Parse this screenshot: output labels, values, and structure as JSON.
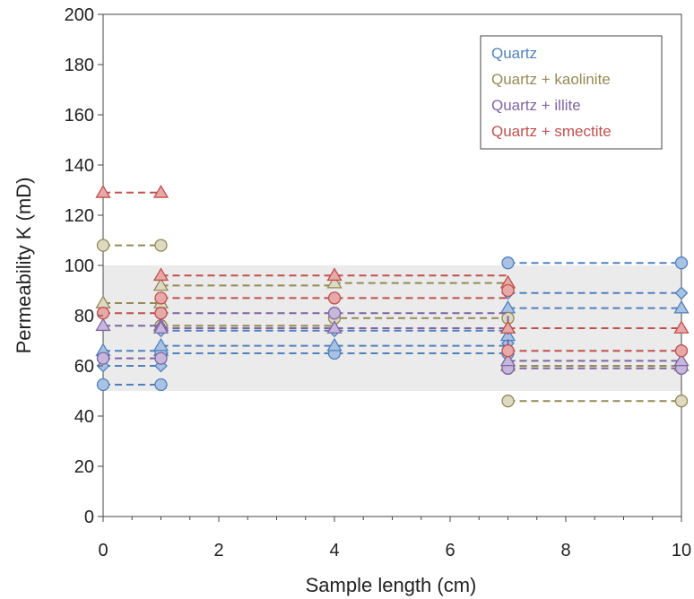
{
  "chart_data": {
    "type": "scatter",
    "title": "",
    "xlabel": "Sample length (cm)",
    "ylabel": "Permeability K (mD)",
    "xlim": [
      0,
      10
    ],
    "ylim": [
      0,
      200
    ],
    "x_ticks": [
      0,
      2,
      4,
      6,
      8,
      10
    ],
    "y_ticks": [
      0,
      20,
      40,
      60,
      80,
      100,
      120,
      140,
      160,
      180,
      200
    ],
    "shaded_band": [
      50,
      100
    ],
    "legend_position": "top-right",
    "grid": false,
    "series": [
      {
        "name": "Quartz",
        "color": "#4f81bd",
        "fill": "#a9c2e3",
        "lines": [
          {
            "marker": "circle",
            "points": [
              [
                0,
                52.5
              ],
              [
                1,
                52.5
              ]
            ]
          },
          {
            "marker": "diamond",
            "points": [
              [
                0,
                60
              ],
              [
                1,
                60
              ]
            ]
          },
          {
            "marker": "triangle",
            "points": [
              [
                0,
                66
              ],
              [
                1,
                66
              ]
            ]
          },
          {
            "marker": "circle",
            "points": [
              [
                1,
                65
              ],
              [
                4,
                65
              ],
              [
                7,
                65
              ]
            ]
          },
          {
            "marker": "diamond",
            "points": [
              [
                1,
                74
              ],
              [
                4,
                74
              ],
              [
                7,
                69
              ]
            ]
          },
          {
            "marker": "triangle",
            "points": [
              [
                1,
                68
              ],
              [
                4,
                68
              ],
              [
                7,
                72
              ]
            ]
          },
          {
            "marker": "circle",
            "points": [
              [
                7,
                101
              ],
              [
                10,
                101
              ]
            ]
          },
          {
            "marker": "diamond",
            "points": [
              [
                7,
                89
              ],
              [
                10,
                89
              ]
            ]
          },
          {
            "marker": "triangle",
            "points": [
              [
                7,
                83
              ],
              [
                10,
                83
              ]
            ]
          }
        ]
      },
      {
        "name": "Quartz + kaolinite",
        "color": "#948a54",
        "fill": "#ddd9c3",
        "lines": [
          {
            "marker": "circle",
            "points": [
              [
                0,
                108
              ],
              [
                1,
                108
              ]
            ]
          },
          {
            "marker": "triangle",
            "points": [
              [
                0,
                85
              ],
              [
                1,
                85
              ]
            ]
          },
          {
            "marker": "circle",
            "points": [
              [
                1,
                76
              ],
              [
                4,
                79
              ],
              [
                7,
                79
              ]
            ]
          },
          {
            "marker": "triangle",
            "points": [
              [
                1,
                92
              ],
              [
                4,
                93
              ],
              [
                7,
                93
              ]
            ]
          },
          {
            "marker": "circle",
            "points": [
              [
                7,
                46
              ],
              [
                10,
                46
              ]
            ]
          },
          {
            "marker": "triangle",
            "points": [
              [
                7,
                60
              ],
              [
                10,
                60
              ]
            ]
          }
        ]
      },
      {
        "name": "Quartz + illite",
        "color": "#8064a2",
        "fill": "#c5b8da",
        "lines": [
          {
            "marker": "circle",
            "points": [
              [
                0,
                63
              ],
              [
                1,
                63
              ]
            ]
          },
          {
            "marker": "triangle",
            "points": [
              [
                0,
                76
              ],
              [
                1,
                76
              ]
            ]
          },
          {
            "marker": "circle",
            "points": [
              [
                1,
                81
              ],
              [
                4,
                81
              ],
              [
                7,
                59
              ]
            ]
          },
          {
            "marker": "triangle",
            "points": [
              [
                1,
                75
              ],
              [
                4,
                75
              ],
              [
                7,
                75
              ]
            ]
          },
          {
            "marker": "circle",
            "points": [
              [
                7,
                59
              ],
              [
                10,
                59
              ]
            ]
          },
          {
            "marker": "triangle",
            "points": [
              [
                7,
                62
              ],
              [
                10,
                62
              ]
            ]
          }
        ]
      },
      {
        "name": "Quartz + smectite",
        "color": "#c0504d",
        "fill": "#e6a9a8",
        "lines": [
          {
            "marker": "triangle",
            "points": [
              [
                0,
                129
              ],
              [
                1,
                129
              ]
            ]
          },
          {
            "marker": "circle",
            "points": [
              [
                0,
                81
              ],
              [
                1,
                81
              ]
            ]
          },
          {
            "marker": "triangle",
            "points": [
              [
                1,
                96
              ],
              [
                4,
                96
              ],
              [
                7,
                93
              ]
            ]
          },
          {
            "marker": "circle",
            "points": [
              [
                1,
                87
              ],
              [
                4,
                87
              ],
              [
                7,
                90
              ]
            ]
          },
          {
            "marker": "triangle",
            "points": [
              [
                7,
                75
              ],
              [
                10,
                75
              ]
            ]
          },
          {
            "marker": "circle",
            "points": [
              [
                7,
                66
              ],
              [
                10,
                66
              ]
            ]
          }
        ]
      }
    ]
  }
}
